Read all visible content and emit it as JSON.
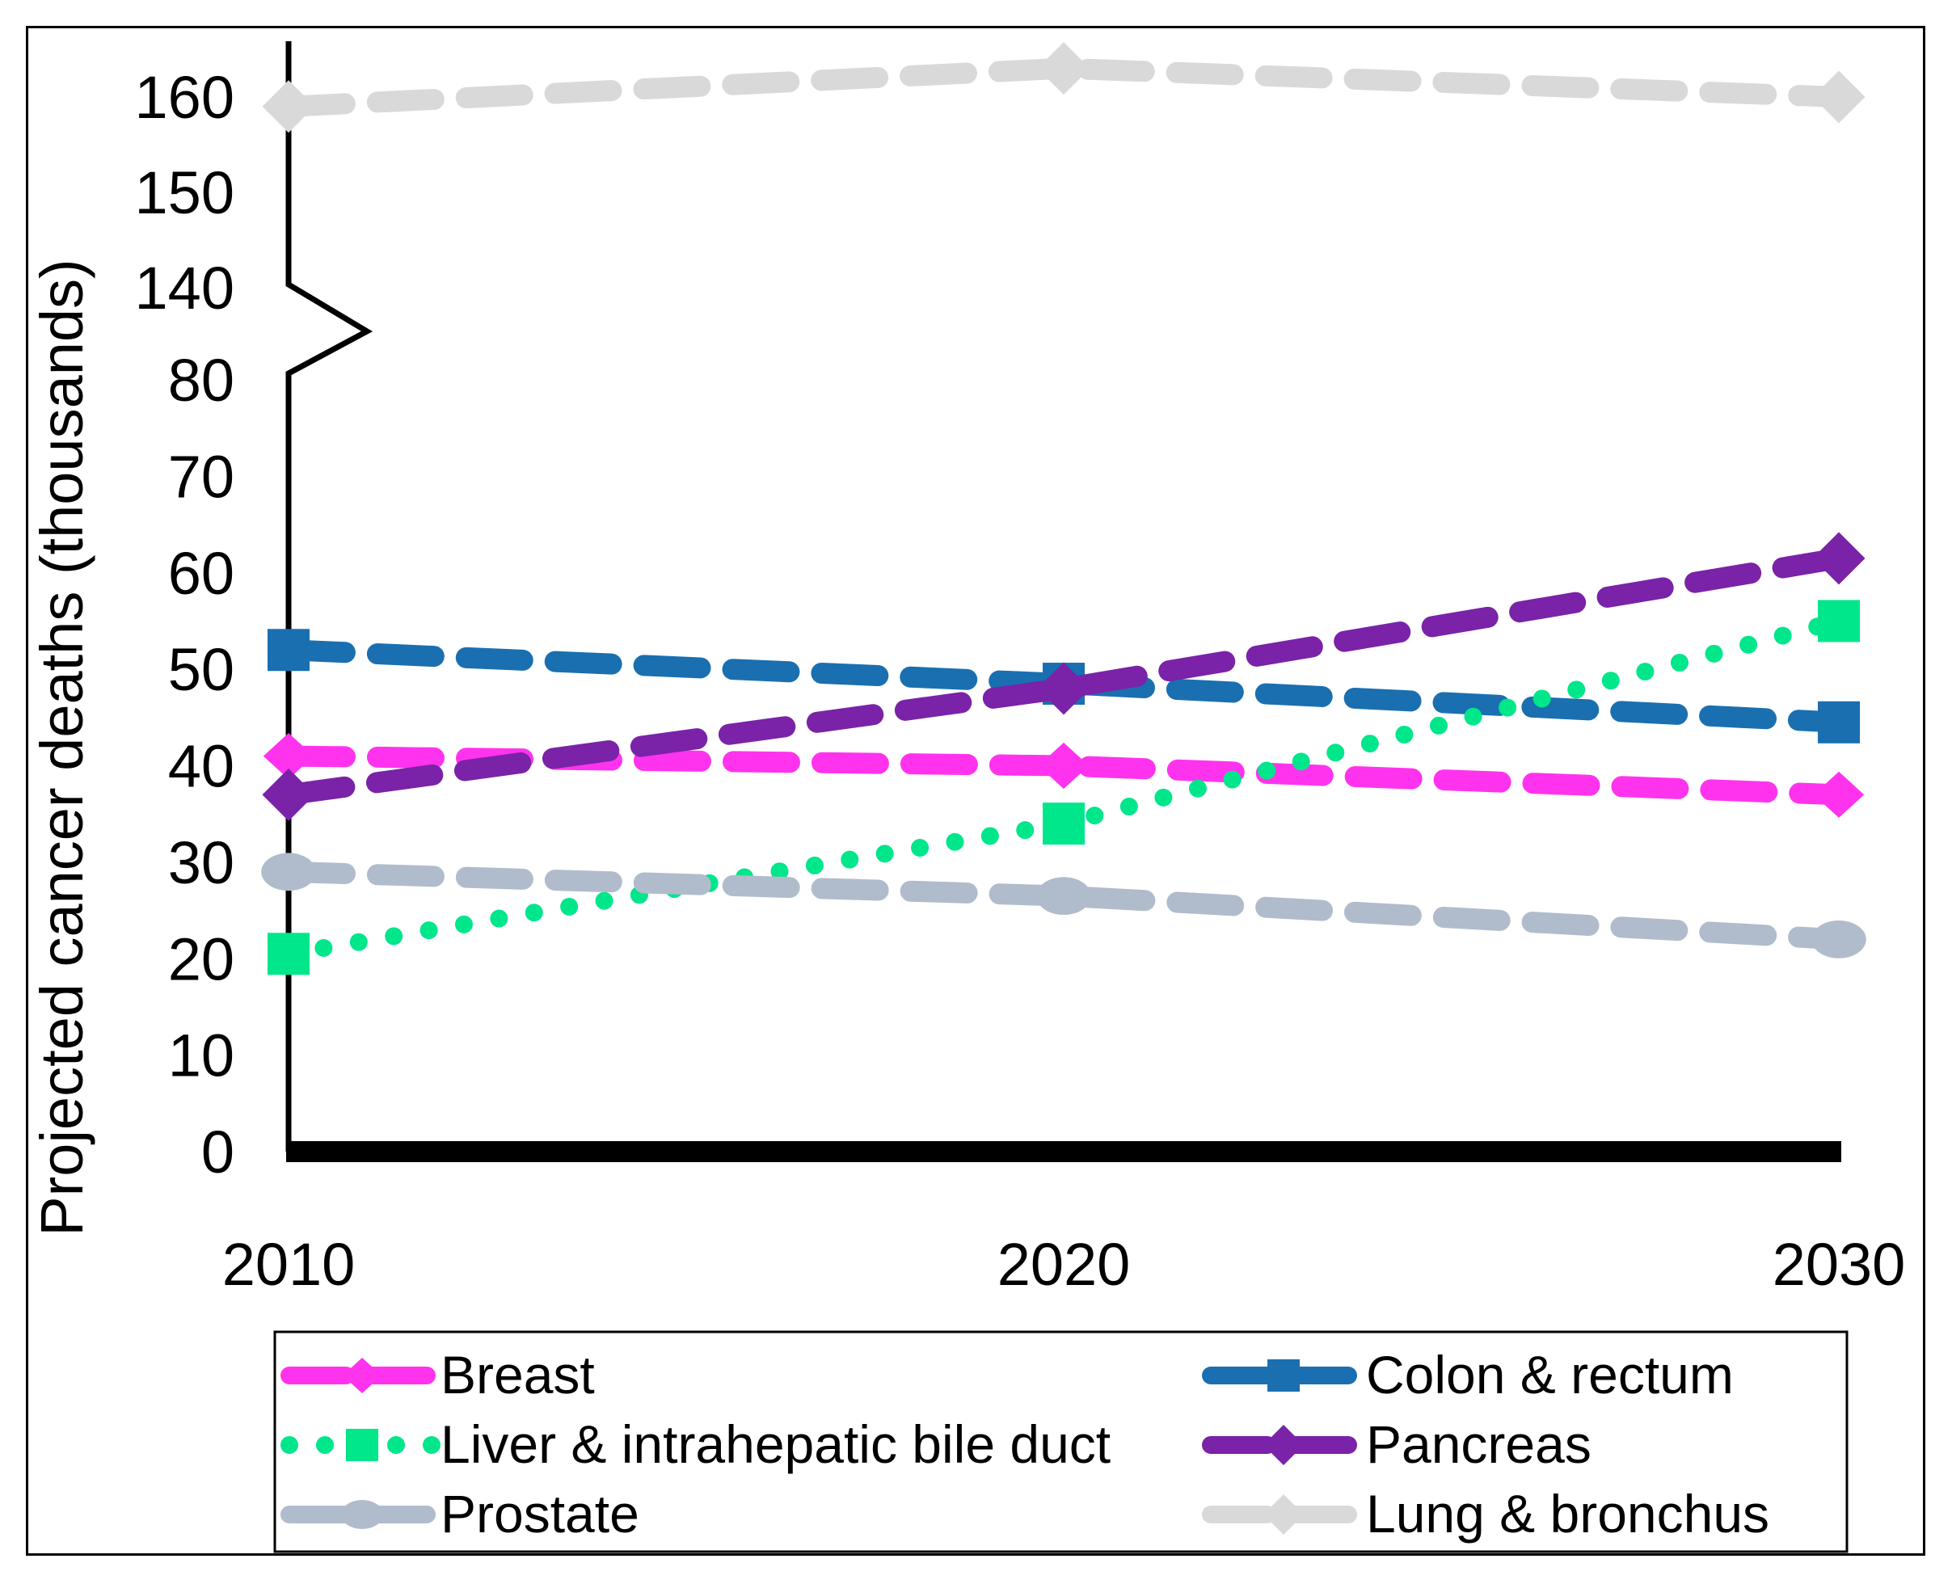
{
  "chart_data": {
    "type": "line",
    "title": "",
    "xlabel": "",
    "ylabel": "Projected cancer deaths (thousands)",
    "x": [
      "2010",
      "2020",
      "2030"
    ],
    "y_ticks": [
      "0",
      "10",
      "20",
      "30",
      "40",
      "50",
      "60",
      "70",
      "80",
      "140",
      "150",
      "160"
    ],
    "y_axis_break": [
      80,
      140
    ],
    "ylim": [
      0,
      165
    ],
    "grid": false,
    "legend_position": "bottom",
    "series": [
      {
        "name": "Breast",
        "values": [
          41,
          40,
          37
        ],
        "color": "#ff33ee",
        "style": "dashed",
        "marker": "plus"
      },
      {
        "name": "Colon & rectum",
        "values": [
          52,
          48.5,
          44.5
        ],
        "color": "#1a6fb0",
        "style": "dashed",
        "marker": "square"
      },
      {
        "name": "Liver & intrahepatic bile duct",
        "values": [
          20.5,
          34,
          55
        ],
        "color": "#00e68a",
        "style": "dotted",
        "marker": "square"
      },
      {
        "name": "Pancreas",
        "values": [
          37,
          48,
          61.5
        ],
        "color": "#7a22a8",
        "style": "dashed",
        "marker": "diamond"
      },
      {
        "name": "Prostate",
        "values": [
          29,
          26.5,
          22
        ],
        "color": "#b0bccc",
        "style": "dashed",
        "marker": "circle"
      },
      {
        "name": "Lung & bronchus",
        "values": [
          159,
          163,
          160
        ],
        "color": "#d9d9d9",
        "style": "dashed",
        "marker": "diamond"
      }
    ]
  }
}
